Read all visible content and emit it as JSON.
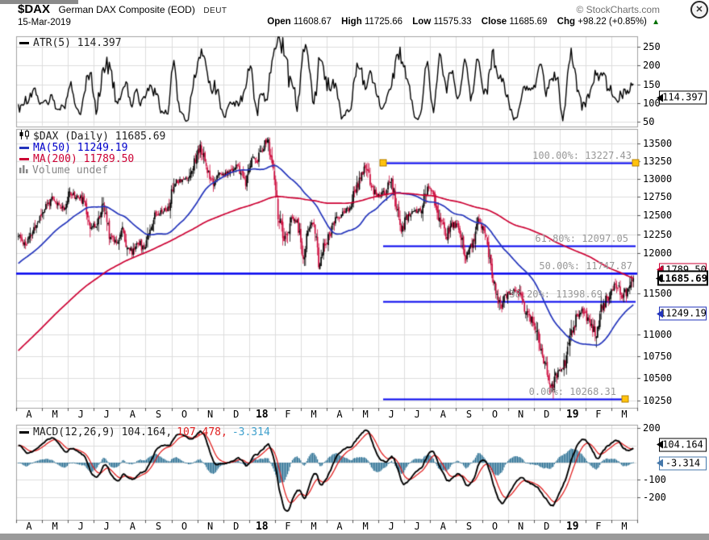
{
  "header": {
    "symbol": "$DAX",
    "name": "German DAX Composite (EOD)",
    "exchange": "DEUT",
    "copyright": "© StockCharts.com",
    "date": "15-Mar-2019",
    "close_icon": "✕",
    "quote": {
      "open_label": "Open",
      "open": "11608.67",
      "high_label": "High",
      "high": "11725.66",
      "low_label": "Low",
      "low": "11575.33",
      "close_label": "Close",
      "close": "11685.69",
      "chg_label": "Chg",
      "chg": "+98.22 (+0.85%)",
      "arrow": "▲"
    }
  },
  "colors": {
    "up_candle": "#000000",
    "down_candle": "#CC0A3C",
    "ma50": "#2233BB",
    "ma200": "#CC0033",
    "fib_line": "#0000EE",
    "fib_label": "#989898",
    "fib_handle": "#FFC20E",
    "macd_line": "#000000",
    "macd_signal": "#E02020",
    "macd_hist": "#2E7295",
    "macd_hist_text": "#3FA0CC",
    "atr_line": "#000000",
    "grid": "#DCDCDC",
    "panel_border": "#A0A0A0",
    "chg_up": "#007000"
  },
  "chart_data": {
    "type": "candlestick",
    "title": "$DAX (Daily)",
    "scale": "log",
    "panels": {
      "atr": {
        "legend": "ATR(5) 114.397",
        "yticks": [
          250,
          200,
          150,
          100,
          50
        ],
        "tag": {
          "text": "114.397",
          "value": 114.397,
          "border": "#000000"
        }
      },
      "price": {
        "legend_title": "$DAX (Daily) 11685.69",
        "legend_ma50": "MA(50) 11249.19",
        "legend_ma200": "MA(200) 11789.50",
        "legend_volume": "Volume undef",
        "yticks": [
          13500,
          13250,
          13000,
          12750,
          12500,
          12250,
          12000,
          11500,
          11000,
          10750,
          10500,
          10250
        ],
        "grid_top": 13500,
        "grid_bottom": 10250,
        "grid_step": 250,
        "tags": [
          {
            "id": "ma200-tag",
            "text": "11789.50",
            "value": 11789.5,
            "border": "#CC0033",
            "bold": false
          },
          {
            "id": "close-tag",
            "text": "11685.69",
            "value": 11685.69,
            "border": "#000000",
            "bold": true
          },
          {
            "id": "ma50-tag",
            "text": "11249.19",
            "value": 11249.19,
            "border": "#2233BB",
            "bold": false
          }
        ],
        "fib_levels": [
          {
            "pct": 100,
            "label": "100.00%: 13227.43",
            "value": 13227.43
          },
          {
            "pct": 61.8,
            "label": "61.80%: 12097.05",
            "value": 12097.05
          },
          {
            "pct": 50,
            "label": "50.00%: 11747.87",
            "value": 11747.87
          },
          {
            "pct": 38.2,
            "label": "38.20%: 11398.69",
            "value": 11398.69
          },
          {
            "pct": 0,
            "label": "0.00%: 10268.31",
            "value": 10268.31
          }
        ]
      },
      "macd": {
        "legend_main": "MACD(12,26,9) 104.164,",
        "legend_signal": "107.478,",
        "legend_hist": "-3.314",
        "yticks": [
          200,
          -100,
          -200
        ],
        "gridlines": [
          200,
          100,
          0,
          -100,
          -200
        ],
        "tags": [
          {
            "id": "macd-tag",
            "text": "104.164",
            "value": 104.164,
            "border": "#000000"
          },
          {
            "id": "hist-tag",
            "text": "-3.314",
            "value": -3.314,
            "border": "#4477AA"
          }
        ]
      }
    },
    "months": [
      {
        "label": "A",
        "bold": false,
        "closes": [
          12210,
          12110,
          12270,
          12440
        ]
      },
      {
        "label": "M",
        "bold": false,
        "closes": [
          12620,
          12710,
          12640,
          12600
        ]
      },
      {
        "label": "J",
        "bold": false,
        "closes": [
          12820,
          12750,
          12740,
          12620,
          12330
        ]
      },
      {
        "label": "J",
        "bold": false,
        "closes": [
          12390,
          12630,
          12240,
          12160
        ]
      },
      {
        "label": "A",
        "bold": false,
        "closes": [
          12310,
          12090,
          12010,
          12170,
          12060
        ]
      },
      {
        "label": "S",
        "bold": false,
        "closes": [
          12300,
          12520,
          12560,
          12590
        ]
      },
      {
        "label": "O",
        "bold": false,
        "closes": [
          12960,
          12990,
          13010,
          13220
        ]
      },
      {
        "label": "N",
        "bold": false,
        "closes": [
          13480,
          13130,
          12960,
          13060
        ]
      },
      {
        "label": "D",
        "bold": false,
        "closes": [
          13060,
          13100,
          13190,
          13070,
          12920
        ]
      },
      {
        "label": "18",
        "bold": true,
        "closes": [
          13320,
          13250,
          13430,
          13560,
          13190
        ]
      },
      {
        "label": "F",
        "bold": false,
        "closes": [
          12510,
          12110,
          12450,
          12400
        ]
      },
      {
        "label": "M",
        "bold": false,
        "closes": [
          11920,
          12350,
          12390,
          11880,
          12100
        ]
      },
      {
        "label": "A",
        "bold": false,
        "closes": [
          12250,
          12450,
          12540,
          12580
        ]
      },
      {
        "label": "M",
        "bold": false,
        "closes": [
          12820,
          13020,
          13170,
          12940,
          12780
        ]
      },
      {
        "label": "J",
        "bold": false,
        "closes": [
          12770,
          12840,
          13010,
          12580,
          12310
        ]
      },
      {
        "label": "J",
        "bold": false,
        "closes": [
          12500,
          12540,
          12560,
          12860
        ]
      },
      {
        "label": "A",
        "bold": false,
        "closes": [
          12800,
          12420,
          12240,
          12390
        ]
      },
      {
        "label": "S",
        "bold": false,
        "closes": [
          12340,
          11960,
          12090,
          12430
        ]
      },
      {
        "label": "O",
        "bold": false,
        "closes": [
          12290,
          11970,
          11550,
          11310,
          11450
        ]
      },
      {
        "label": "N",
        "bold": false,
        "closes": [
          11520,
          11530,
          11340,
          11190
        ]
      },
      {
        "label": "D",
        "bold": false,
        "closes": [
          11060,
          10790,
          10620,
          10380,
          10560
        ]
      },
      {
        "label": "19",
        "bold": true,
        "closes": [
          10580,
          10890,
          11210,
          11280
        ]
      },
      {
        "label": "F",
        "bold": false,
        "closes": [
          11180,
          11010,
          11300,
          11460
        ]
      },
      {
        "label": "M",
        "bold": false,
        "closes": [
          11600,
          11460,
          11685.69
        ]
      }
    ],
    "anchors": {
      "high": 13227.43,
      "low": 10268.31,
      "last_close": 11685.69
    }
  }
}
